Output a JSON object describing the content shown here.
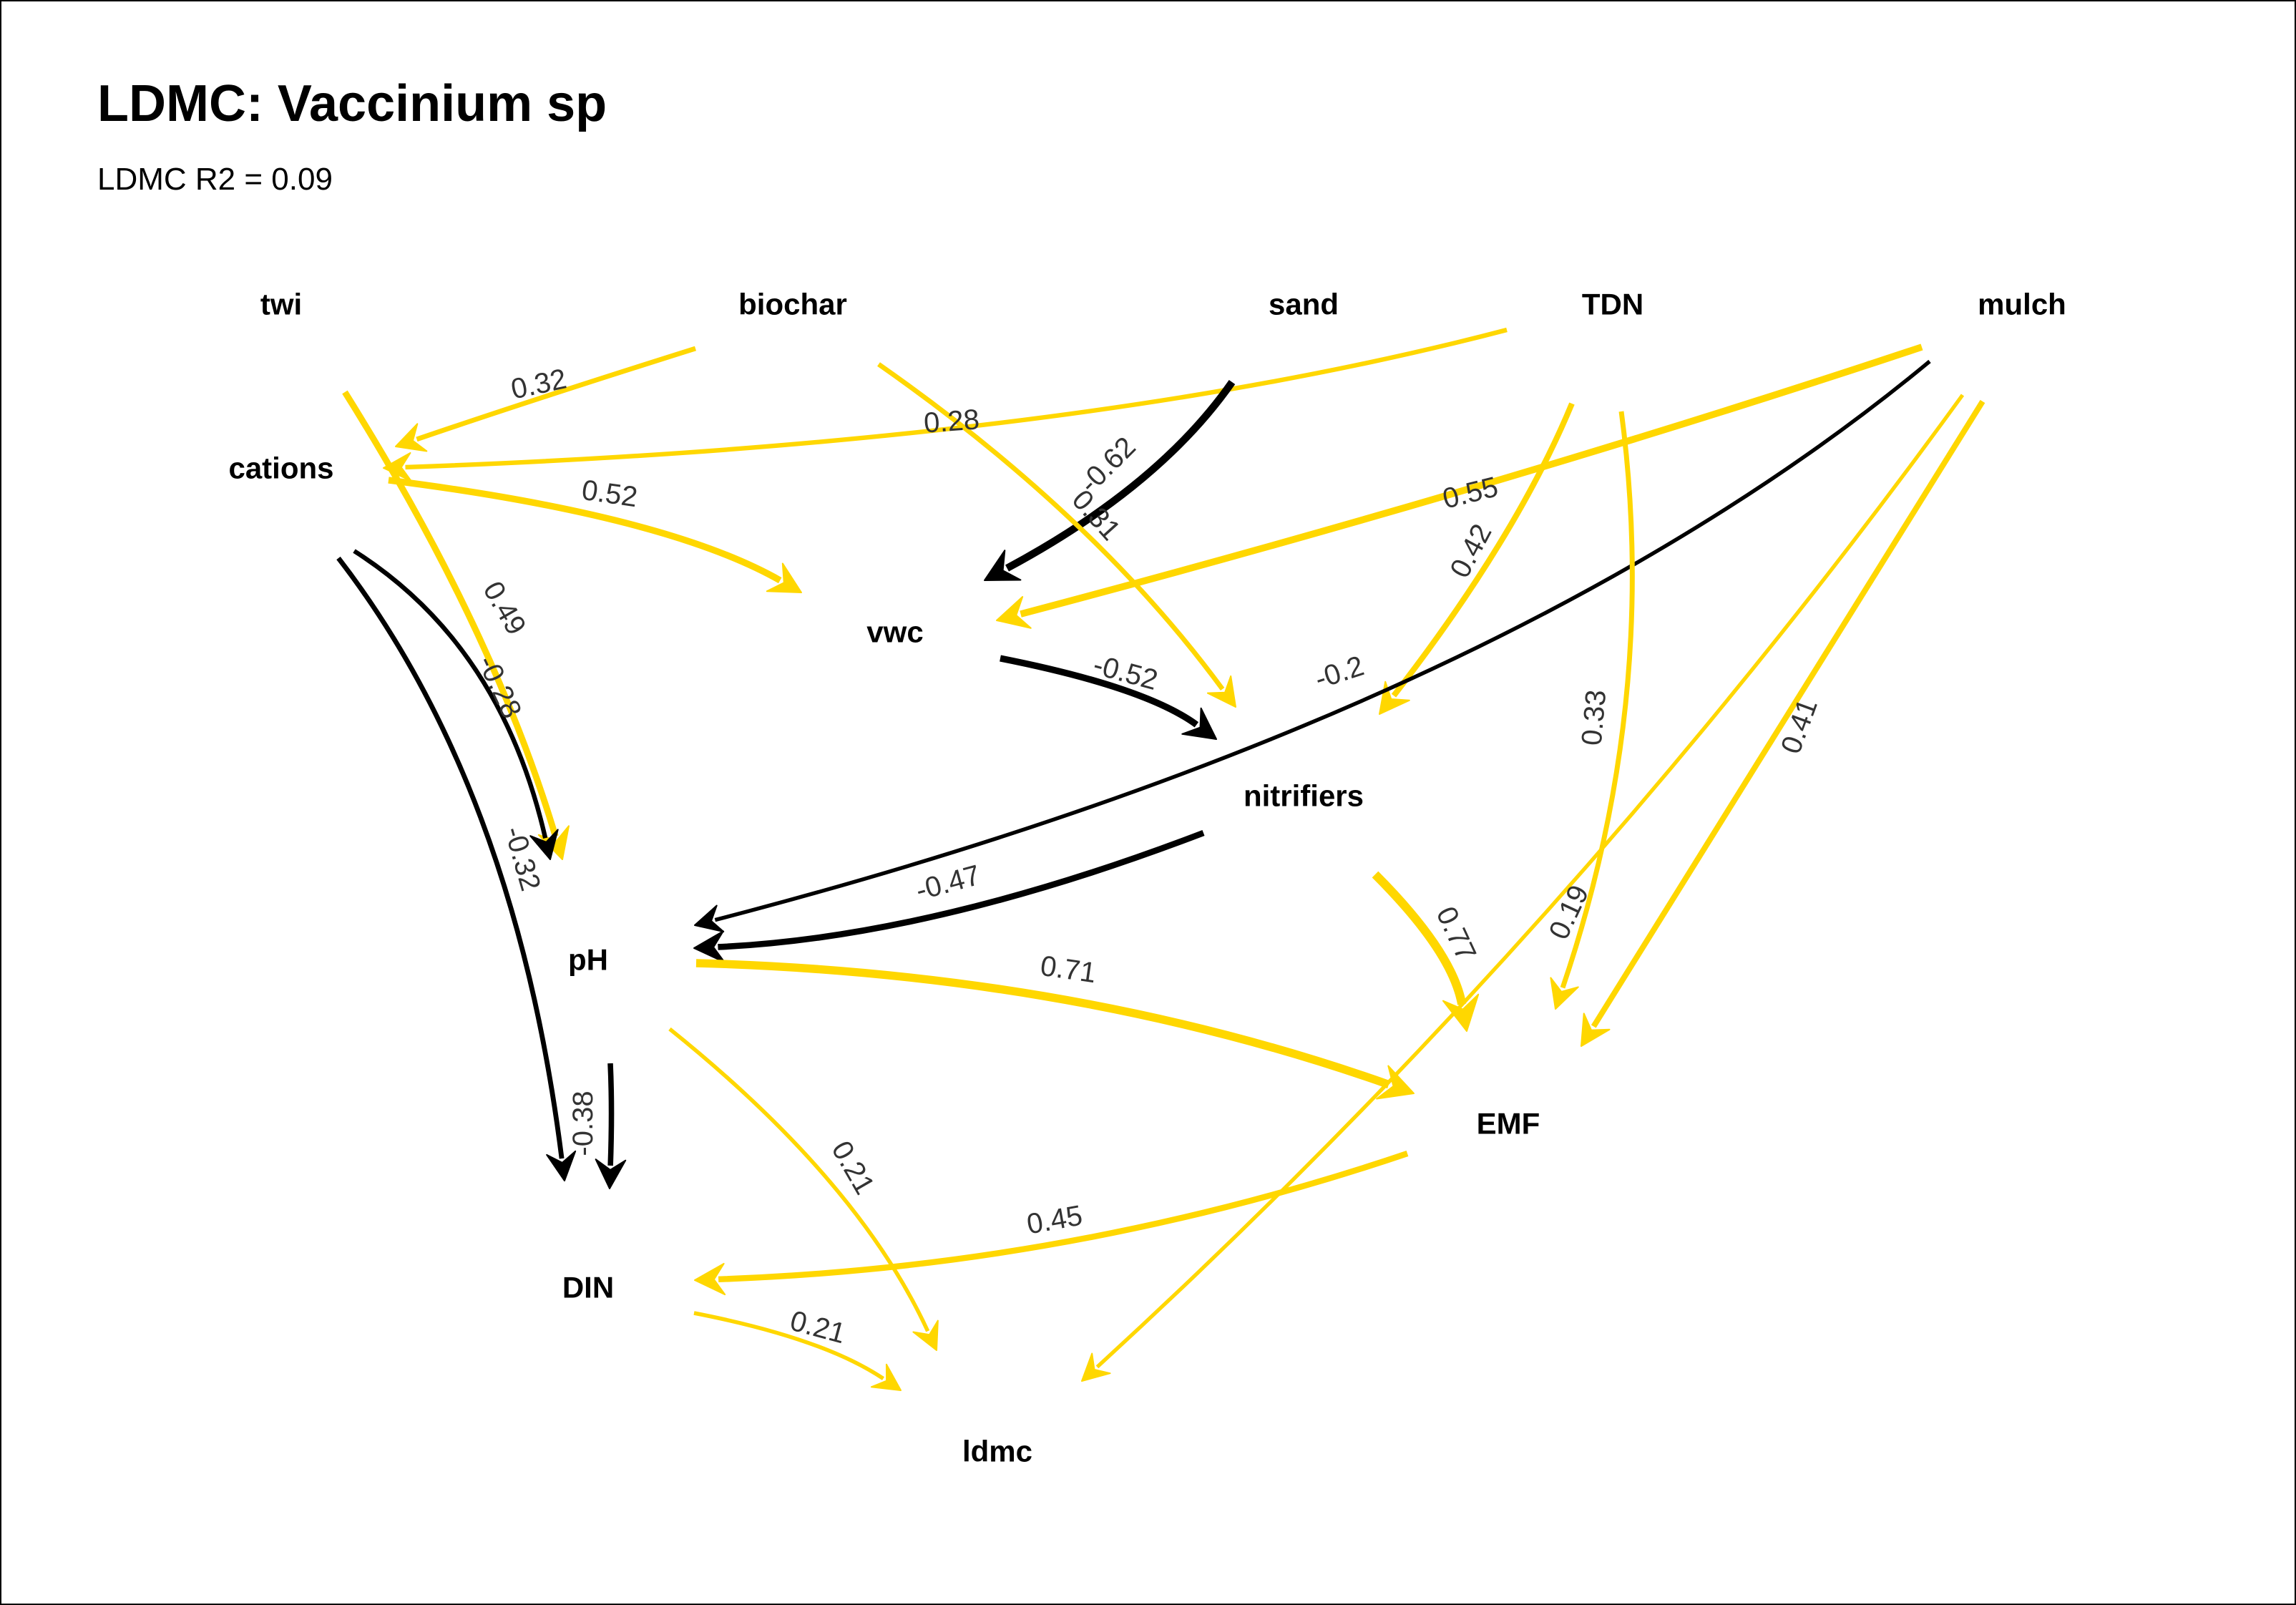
{
  "title": "LDMC: Vaccinium sp",
  "subtitle": "LDMC R2 = 0.09",
  "colors": {
    "positive": "#FFD700",
    "negative": "#000000"
  },
  "nodes": [
    {
      "id": "twi",
      "label": "twi"
    },
    {
      "id": "biochar",
      "label": "biochar"
    },
    {
      "id": "sand",
      "label": "sand"
    },
    {
      "id": "TDN",
      "label": "TDN"
    },
    {
      "id": "mulch",
      "label": "mulch"
    },
    {
      "id": "cations",
      "label": "cations"
    },
    {
      "id": "vwc",
      "label": "vwc"
    },
    {
      "id": "nitrifiers",
      "label": "nitrifiers"
    },
    {
      "id": "pH",
      "label": "pH"
    },
    {
      "id": "EMF",
      "label": "EMF"
    },
    {
      "id": "DIN",
      "label": "DIN"
    },
    {
      "id": "ldmc",
      "label": "ldmc"
    }
  ],
  "edges": [
    {
      "from": "biochar",
      "to": "cations",
      "label": "0.32",
      "value": 0.32
    },
    {
      "from": "TDN",
      "to": "cations",
      "label": "0.28",
      "value": 0.28
    },
    {
      "from": "cations",
      "to": "vwc",
      "label": "0.52",
      "value": 0.52
    },
    {
      "from": "sand",
      "to": "vwc",
      "label": "-0.62",
      "value": -0.62
    },
    {
      "from": "biochar",
      "to": "nitrifiers",
      "label": "0.31",
      "value": 0.31
    },
    {
      "from": "mulch",
      "to": "vwc",
      "label": "0.55",
      "value": 0.55
    },
    {
      "from": "TDN",
      "to": "nitrifiers",
      "label": "0.42",
      "value": 0.42
    },
    {
      "from": "twi",
      "to": "pH",
      "label": "0.49",
      "value": 0.49
    },
    {
      "from": "cations",
      "to": "pH",
      "label": "-0.28",
      "value": -0.28
    },
    {
      "from": "cations",
      "to": "DIN",
      "label": "-0.32",
      "value": -0.32
    },
    {
      "from": "vwc",
      "to": "nitrifiers",
      "label": "-0.52",
      "value": -0.52
    },
    {
      "from": "mulch",
      "to": "pH",
      "label": "-0.2",
      "value": -0.2
    },
    {
      "from": "nitrifiers",
      "to": "pH",
      "label": "-0.47",
      "value": -0.47
    },
    {
      "from": "TDN",
      "to": "EMF",
      "label": "0.33",
      "value": 0.33
    },
    {
      "from": "mulch",
      "to": "EMF",
      "label": "0.41",
      "value": 0.41
    },
    {
      "from": "nitrifiers",
      "to": "EMF",
      "label": "0.77",
      "value": 0.77
    },
    {
      "from": "mulch",
      "to": "ldmc",
      "label": "0.19",
      "value": 0.19
    },
    {
      "from": "pH",
      "to": "EMF",
      "label": "0.71",
      "value": 0.71
    },
    {
      "from": "pH",
      "to": "DIN",
      "label": "-0.38",
      "value": -0.38
    },
    {
      "from": "pH",
      "to": "ldmc",
      "label": "0.21",
      "value": 0.21
    },
    {
      "from": "EMF",
      "to": "DIN",
      "label": "0.45",
      "value": 0.45
    },
    {
      "from": "DIN",
      "to": "ldmc",
      "label": "0.21",
      "value": 0.21
    }
  ]
}
